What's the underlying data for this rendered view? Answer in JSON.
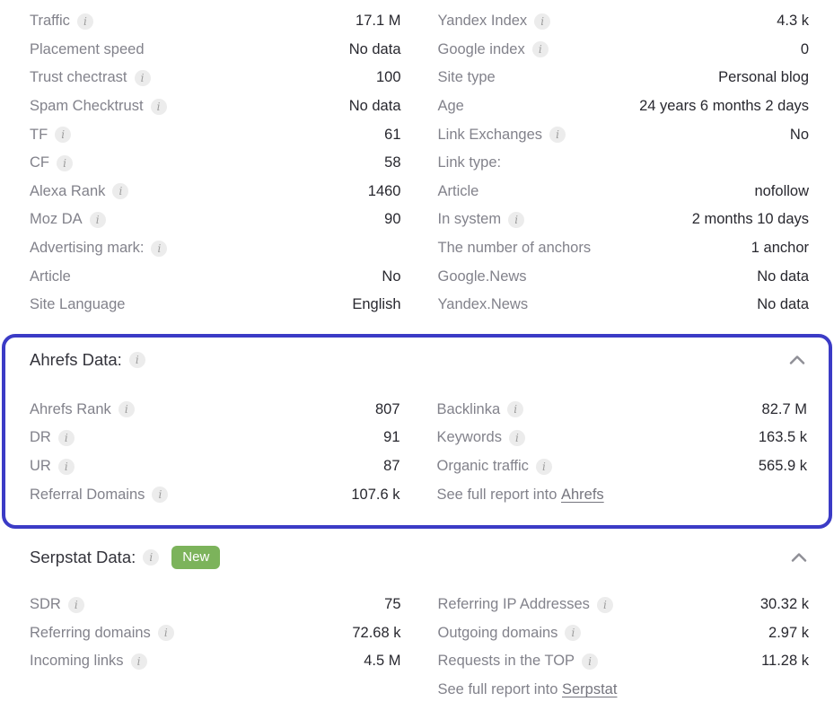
{
  "colors": {
    "accent_border": "#3b3bc6",
    "badge_green": "#7cb35b",
    "label_gray": "#82828b",
    "value_dark": "#28282f"
  },
  "top_section": {
    "left_rows": [
      {
        "label": "Traffic",
        "info": true,
        "value": "17.1 M"
      },
      {
        "label": "Placement speed",
        "info": false,
        "value": "No data"
      },
      {
        "label": "Trust chectrast",
        "info": true,
        "value": "100"
      },
      {
        "label": "Spam Checktrust",
        "info": true,
        "value": "No data"
      },
      {
        "label": "TF",
        "info": true,
        "value": "61"
      },
      {
        "label": "CF",
        "info": true,
        "value": "58"
      },
      {
        "label": "Alexa Rank",
        "info": true,
        "value": "1460"
      },
      {
        "label": "Moz DA",
        "info": true,
        "value": "90"
      },
      {
        "label": "Advertising mark:",
        "info": true,
        "value": ""
      },
      {
        "label": "Article",
        "info": false,
        "value": "No"
      },
      {
        "label": "Site Language",
        "info": false,
        "value": "English"
      }
    ],
    "right_rows": [
      {
        "label": "Yandex Index",
        "info": true,
        "value": "4.3 k"
      },
      {
        "label": "Google index",
        "info": true,
        "value": "0"
      },
      {
        "label": "Site type",
        "info": false,
        "value": "Personal blog"
      },
      {
        "label": "Age",
        "info": false,
        "value": "24 years 6 months 2 days"
      },
      {
        "label": "Link Exchanges",
        "info": true,
        "value": "No"
      },
      {
        "label": "Link type:",
        "info": false,
        "value": ""
      },
      {
        "label": "Article",
        "info": false,
        "value": "nofollow"
      },
      {
        "label": "In system",
        "info": true,
        "value": "2 months 10 days"
      },
      {
        "label": "The number of anchors",
        "info": false,
        "value": "1 anchor"
      },
      {
        "label": "Google.News",
        "info": false,
        "value": "No data"
      },
      {
        "label": "Yandex.News",
        "info": false,
        "value": "No data"
      }
    ]
  },
  "ahrefs": {
    "title": "Ahrefs Data:",
    "left_rows": [
      {
        "label": "Ahrefs Rank",
        "info": true,
        "value": "807"
      },
      {
        "label": "DR",
        "info": true,
        "value": "91"
      },
      {
        "label": "UR",
        "info": true,
        "value": "87"
      },
      {
        "label": "Referral Domains",
        "info": true,
        "value": "107.6 k"
      }
    ],
    "right_rows": [
      {
        "label": "Backlinka",
        "info": true,
        "value": "82.7 M"
      },
      {
        "label": "Keywords",
        "info": true,
        "value": "163.5 k"
      },
      {
        "label": "Organic traffic",
        "info": true,
        "value": "565.9 k"
      },
      {
        "link_prefix": "See full report into",
        "link_label": "Ahrefs"
      }
    ]
  },
  "serpstat": {
    "title": "Serpstat Data:",
    "badge_label": "New",
    "left_rows": [
      {
        "label": "SDR",
        "info": true,
        "value": "75"
      },
      {
        "label": "Referring domains",
        "info": true,
        "value": "72.68 k"
      },
      {
        "label": "Incoming links",
        "info": true,
        "value": "4.5 M"
      }
    ],
    "right_rows": [
      {
        "label": "Referring IP Addresses",
        "info": true,
        "value": "30.32 k"
      },
      {
        "label": "Outgoing domains",
        "info": true,
        "value": "2.97 k"
      },
      {
        "label": "Requests in the TOP",
        "info": true,
        "value": "11.28 k"
      },
      {
        "link_prefix": "See full report into",
        "link_label": "Serpstat"
      }
    ]
  }
}
